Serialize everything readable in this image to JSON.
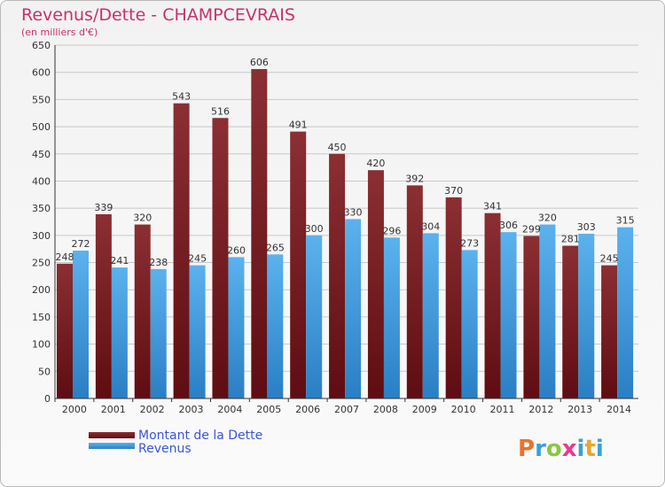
{
  "header": {
    "title": "Revenus/Dette - CHAMPCEVRAIS",
    "subtitle": "(en milliers d'€)"
  },
  "colors": {
    "title": "#c8306e",
    "debt": "#8b2f33",
    "revenue": "#4da3e0",
    "legend_text": "#3a56d8",
    "grid": "#c8c8c8"
  },
  "chart_data": {
    "type": "bar",
    "categories": [
      "2000",
      "2001",
      "2002",
      "2003",
      "2004",
      "2005",
      "2006",
      "2007",
      "2008",
      "2009",
      "2010",
      "2011",
      "2012",
      "2013",
      "2014"
    ],
    "series": [
      {
        "name": "Montant de la Dette",
        "values": [
          248,
          339,
          320,
          543,
          516,
          606,
          491,
          450,
          420,
          392,
          370,
          341,
          299,
          281,
          245
        ]
      },
      {
        "name": "Revenus",
        "values": [
          272,
          241,
          238,
          245,
          260,
          265,
          300,
          330,
          296,
          304,
          273,
          306,
          320,
          303,
          315
        ]
      }
    ],
    "ylim": [
      0,
      650
    ],
    "y_ticks": [
      0,
      50,
      100,
      150,
      200,
      250,
      300,
      350,
      400,
      450,
      500,
      550,
      600,
      650
    ],
    "grid": true,
    "legend_position": "bottom-left"
  },
  "watermark": {
    "text": "Proxiti"
  }
}
